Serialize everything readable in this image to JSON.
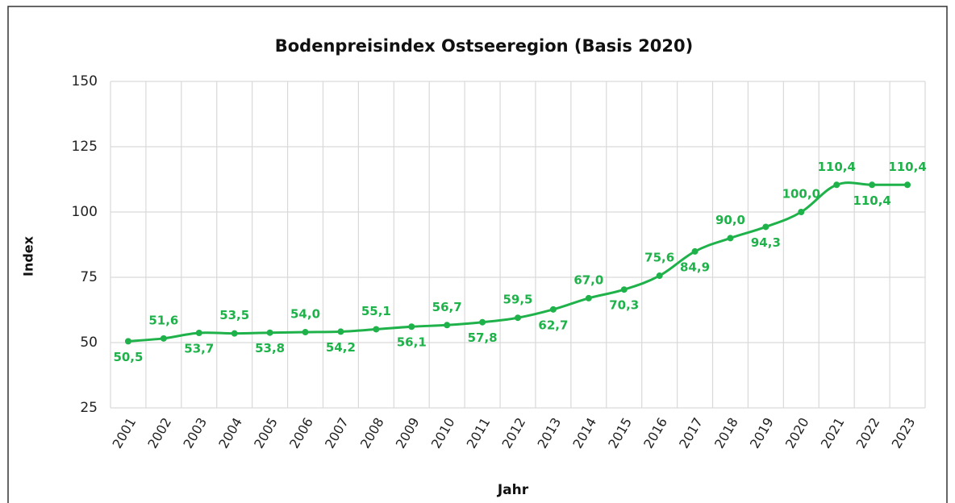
{
  "chart_data": {
    "type": "line",
    "title": "Bodenpreisindex Ostseeregion (Basis 2020)",
    "x_label": "Jahr",
    "y_label": "Index",
    "categories": [
      "2001",
      "2002",
      "2003",
      "2004",
      "2005",
      "2006",
      "2007",
      "2008",
      "2009",
      "2010",
      "2011",
      "2012",
      "2013",
      "2014",
      "2015",
      "2016",
      "2017",
      "2018",
      "2019",
      "2020",
      "2021",
      "2022",
      "2023"
    ],
    "series": [
      {
        "name": "Index",
        "color": "#1fb24a",
        "values": [
          50.5,
          51.6,
          53.7,
          53.5,
          53.8,
          54.0,
          54.2,
          55.1,
          56.1,
          56.7,
          57.8,
          59.5,
          62.7,
          67.0,
          70.3,
          75.6,
          84.9,
          90.0,
          94.3,
          100.0,
          110.4,
          110.4,
          110.4
        ],
        "value_labels": [
          "50,5",
          "51,6",
          "53,7",
          "53,5",
          "53,8",
          "54,0",
          "54,2",
          "55,1",
          "56,1",
          "56,7",
          "57,8",
          "59,5",
          "62,7",
          "67,0",
          "70,3",
          "75,6",
          "84,9",
          "90,0",
          "94,3",
          "100,0",
          "110,4",
          "110,4",
          "110,4"
        ]
      }
    ],
    "ylim": [
      25,
      150
    ],
    "yticks": [
      25,
      50,
      75,
      100,
      125,
      150
    ],
    "grid": true
  }
}
